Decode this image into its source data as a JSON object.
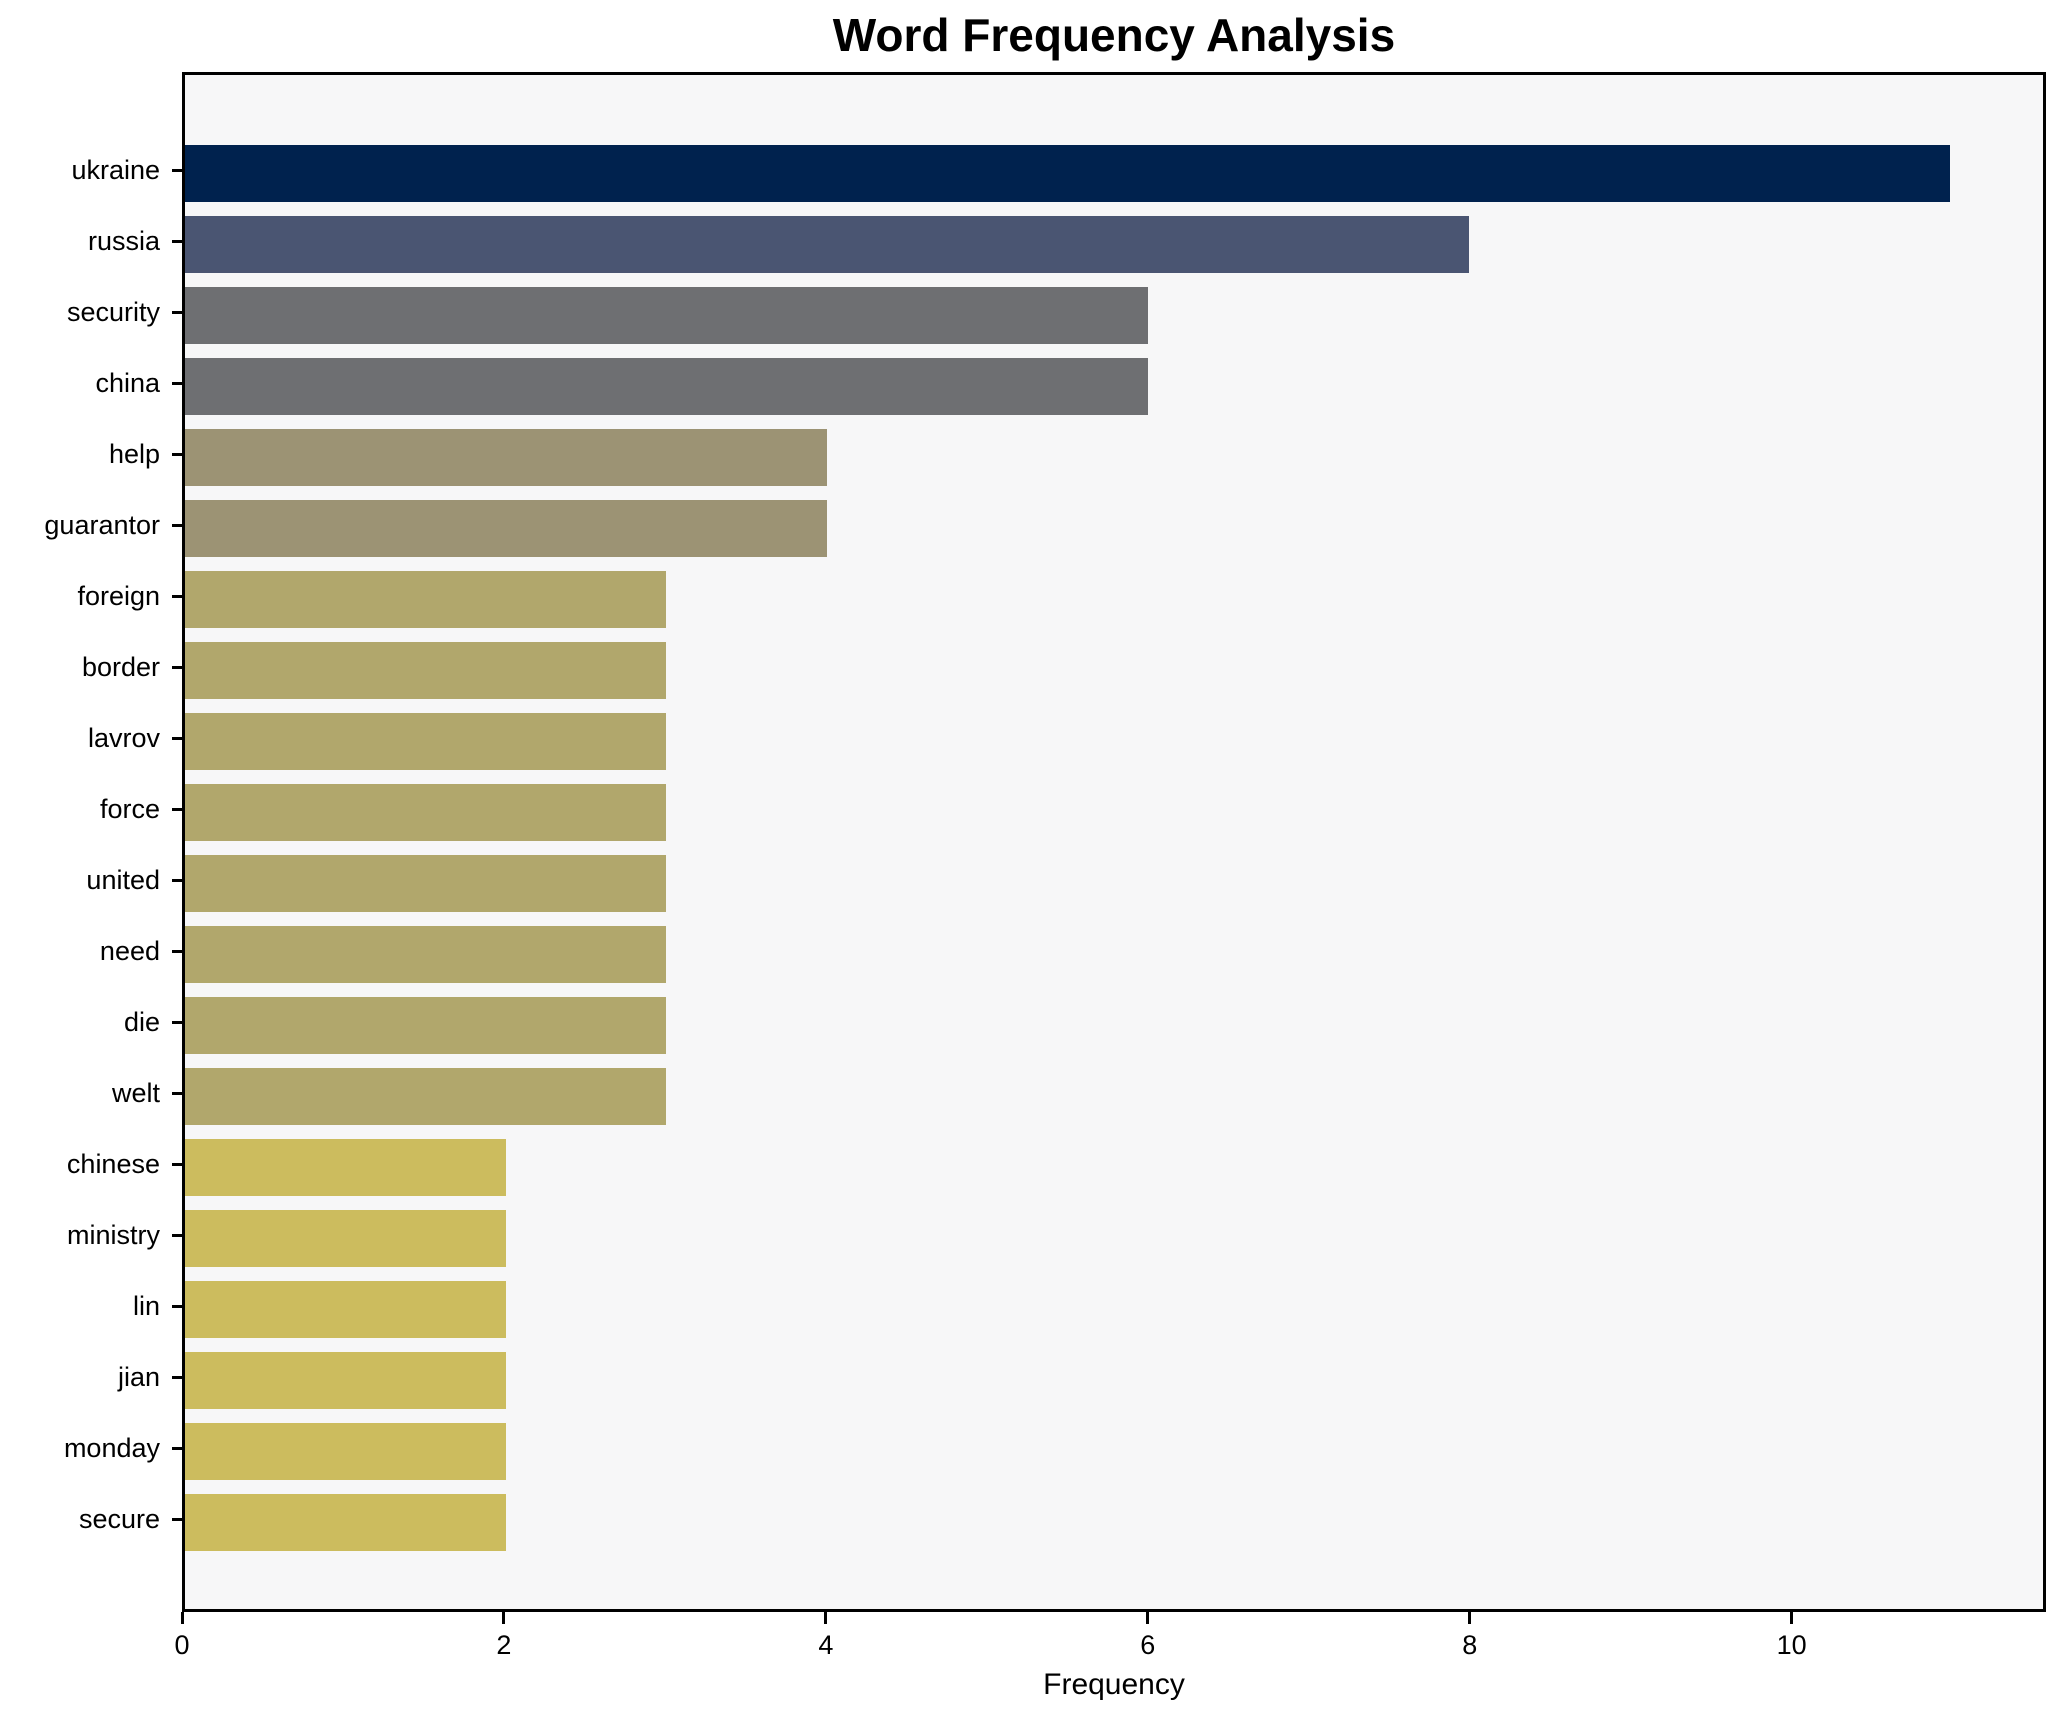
{
  "chart_data": {
    "type": "bar",
    "orientation": "horizontal",
    "title": "Word Frequency Analysis",
    "xlabel": "Frequency",
    "ylabel": "",
    "categories": [
      "ukraine",
      "russia",
      "security",
      "china",
      "help",
      "guarantor",
      "foreign",
      "border",
      "lavrov",
      "force",
      "united",
      "need",
      "die",
      "welt",
      "chinese",
      "ministry",
      "lin",
      "jian",
      "monday",
      "secure"
    ],
    "values": [
      11,
      8,
      6,
      6,
      4,
      4,
      3,
      3,
      3,
      3,
      3,
      3,
      3,
      3,
      2,
      2,
      2,
      2,
      2,
      2
    ],
    "bar_colors": [
      "#00224e",
      "#4a5572",
      "#6e6f72",
      "#6e6f72",
      "#9c9374",
      "#9c9374",
      "#b1a76c",
      "#b1a76c",
      "#b1a76c",
      "#b1a76c",
      "#b1a76c",
      "#b1a76c",
      "#b1a76c",
      "#b1a76c",
      "#ccbc5e",
      "#ccbc5e",
      "#ccbc5e",
      "#ccbc5e",
      "#ccbc5e",
      "#ccbc5e"
    ],
    "xticks": [
      0,
      2,
      4,
      6,
      8,
      10
    ],
    "xlim": [
      0,
      11.58
    ],
    "grid": false,
    "legend": "none",
    "plot_background": "#f7f7f8",
    "figure_background": "#ffffff",
    "axis_color": "#000000"
  }
}
